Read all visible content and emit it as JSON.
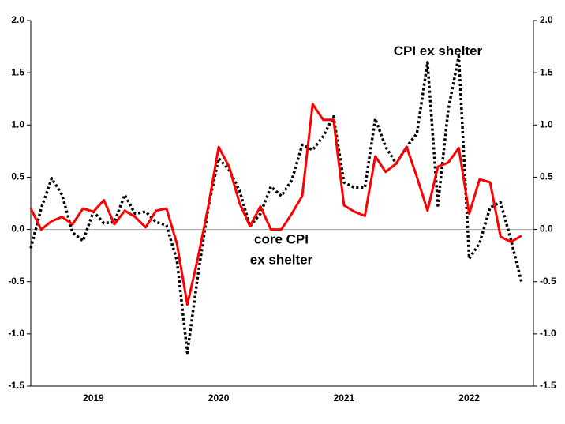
{
  "chart_data": {
    "type": "line",
    "x": [
      2019,
      2019.083,
      2019.167,
      2019.25,
      2019.333,
      2019.417,
      2019.5,
      2019.583,
      2019.667,
      2019.75,
      2019.833,
      2019.917,
      2020,
      2020.083,
      2020.167,
      2020.25,
      2020.333,
      2020.417,
      2020.5,
      2020.583,
      2020.667,
      2020.75,
      2020.833,
      2020.917,
      2021,
      2021.083,
      2021.167,
      2021.25,
      2021.333,
      2021.417,
      2021.5,
      2021.583,
      2021.667,
      2021.75,
      2021.833,
      2021.917,
      2022,
      2022.083,
      2022.167,
      2022.25,
      2022.333,
      2022.417,
      2022.5,
      2022.583,
      2022.667,
      2022.75,
      2022.833,
      2022.917
    ],
    "series": [
      {
        "name": "core CPI ex shelter",
        "color": "#ff0000",
        "dash": false,
        "values": [
          0.2,
          0.0,
          0.08,
          0.12,
          0.05,
          0.2,
          0.17,
          0.28,
          0.05,
          0.18,
          0.12,
          0.02,
          0.18,
          0.2,
          -0.14,
          -0.72,
          -0.28,
          0.22,
          0.79,
          0.6,
          0.25,
          0.03,
          0.22,
          0.0,
          0.0,
          0.15,
          0.32,
          1.2,
          1.05,
          1.05,
          0.23,
          0.17,
          0.13,
          0.7,
          0.55,
          0.63,
          0.79,
          0.5,
          0.18,
          0.6,
          0.64,
          0.78,
          0.15,
          0.48,
          0.45,
          -0.07,
          -0.12,
          -0.06
        ]
      },
      {
        "name": "CPI ex shelter",
        "color": "#000000",
        "dash": true,
        "values": [
          -0.18,
          0.2,
          0.49,
          0.33,
          -0.03,
          -0.11,
          0.17,
          0.06,
          0.07,
          0.33,
          0.15,
          0.17,
          0.07,
          0.04,
          -0.3,
          -1.18,
          -0.45,
          0.21,
          0.68,
          0.57,
          0.37,
          0.03,
          0.15,
          0.41,
          0.32,
          0.47,
          0.81,
          0.76,
          0.89,
          1.08,
          0.45,
          0.4,
          0.4,
          1.06,
          0.79,
          0.63,
          0.79,
          0.92,
          1.6,
          0.23,
          1.15,
          1.66,
          -0.28,
          -0.13,
          0.21,
          0.26,
          -0.1,
          -0.5
        ]
      }
    ],
    "annotations": [
      {
        "series": 1,
        "lines": [
          "CPI ex shelter"
        ],
        "x": 2022.25,
        "y": 1.7
      },
      {
        "series": 0,
        "lines": [
          "core CPI",
          "ex shelter"
        ],
        "x": 2021.0,
        "y": -0.1
      }
    ],
    "xlim": [
      2019,
      2023
    ],
    "xticks": [
      {
        "value": 2019.5,
        "label": "2019"
      },
      {
        "value": 2020.5,
        "label": "2020"
      },
      {
        "value": 2021.5,
        "label": "2021"
      },
      {
        "value": 2022.5,
        "label": "2022"
      }
    ],
    "ylim": [
      -1.5,
      2.0
    ],
    "yticks": [
      {
        "value": -1.5,
        "label": "-1.5"
      },
      {
        "value": -1.0,
        "label": "-1.0"
      },
      -0.5,
      {
        "value": 0,
        "label": "0.0"
      },
      0.5,
      {
        "value": 1,
        "label": "1.0"
      },
      1.5,
      {
        "value": 2,
        "label": "2.0"
      }
    ],
    "y2lim": [
      -1.5,
      2.0
    ],
    "y2ticks": [
      {
        "value": -1.5,
        "label": "-1.5"
      },
      {
        "value": -1.0,
        "label": "-1.0"
      },
      -0.5,
      {
        "value": 0,
        "label": "0.0"
      },
      0.5,
      {
        "value": 1,
        "label": "1.0"
      },
      1.5,
      {
        "value": 2,
        "label": "2.0"
      }
    ],
    "zero_line": true,
    "zero_line_color": "#a0a0a0"
  }
}
